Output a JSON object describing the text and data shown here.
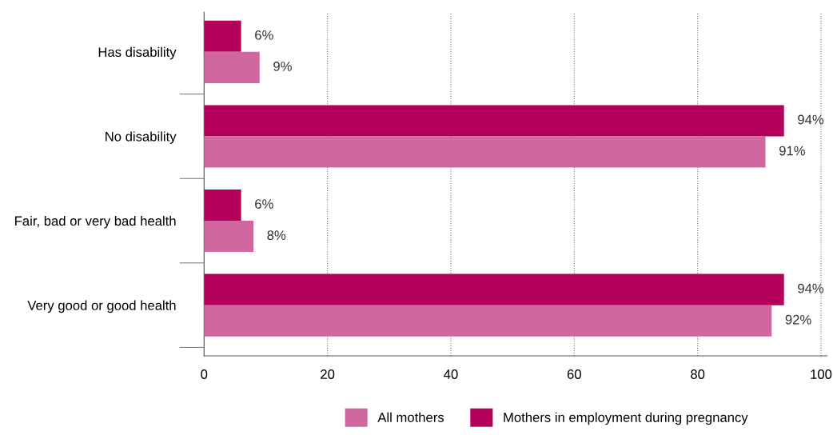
{
  "chart_data": {
    "type": "bar",
    "orientation": "horizontal",
    "categories": [
      "Has disability",
      "No disability",
      "Fair, bad or very bad health",
      "Very good or good health"
    ],
    "series": [
      {
        "name": "Mothers in employment during pregnancy",
        "color": "#b3005a",
        "values": [
          6,
          94,
          6,
          94
        ],
        "value_labels": [
          "6%",
          "94%",
          "6%",
          "94%"
        ]
      },
      {
        "name": "All mothers",
        "color": "#d0679f",
        "values": [
          9,
          91,
          8,
          92
        ],
        "value_labels": [
          "9%",
          "91%",
          "8%",
          "92%"
        ]
      }
    ],
    "xlim": [
      0,
      101
    ],
    "xticks": [
      0,
      20,
      40,
      60,
      80,
      100
    ],
    "grid": "x",
    "legend": "bottom"
  }
}
